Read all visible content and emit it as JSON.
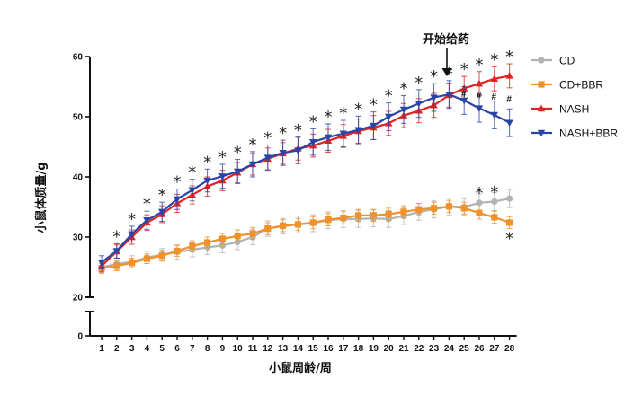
{
  "chart_data": {
    "type": "line",
    "xlabel": "小鼠周龄/周",
    "ylabel": "小鼠体质量/g",
    "x": [
      1,
      2,
      3,
      4,
      5,
      6,
      7,
      8,
      9,
      10,
      11,
      12,
      13,
      14,
      15,
      16,
      17,
      18,
      19,
      20,
      21,
      22,
      23,
      24,
      25,
      26,
      27,
      28
    ],
    "y_ticks": [
      0,
      20,
      30,
      40,
      50,
      60
    ],
    "ylim_upper": [
      20,
      60
    ],
    "ylim_lower": [
      0,
      0
    ],
    "axis_break": true,
    "grid": false,
    "legend_position": "right",
    "annotation": {
      "text": "开始给药",
      "x": 24
    },
    "series": [
      {
        "name": "CD",
        "color": "#b3b3b3",
        "marker": "circle",
        "values": [
          25.0,
          25.5,
          25.9,
          26.6,
          27.1,
          27.5,
          27.9,
          28.3,
          28.6,
          29.2,
          30.0,
          31.4,
          31.8,
          32.1,
          32.3,
          32.8,
          33.0,
          33.0,
          33.1,
          33.0,
          33.5,
          34.2,
          34.6,
          35.1,
          35.0,
          35.7,
          35.9,
          36.4
        ],
        "errors": [
          1.0,
          1.0,
          1.0,
          1.0,
          1.0,
          1.2,
          1.2,
          1.2,
          1.2,
          1.3,
          1.3,
          1.3,
          1.3,
          1.4,
          1.4,
          1.4,
          1.4,
          1.4,
          1.4,
          1.4,
          1.4,
          1.4,
          1.4,
          1.4,
          1.4,
          1.5,
          1.5,
          1.5
        ]
      },
      {
        "name": "CD+BBR",
        "color": "#f0922b",
        "marker": "square",
        "values": [
          24.8,
          25.2,
          25.7,
          26.4,
          26.9,
          27.7,
          28.5,
          29.1,
          29.7,
          30.2,
          30.6,
          31.4,
          31.9,
          32.1,
          32.4,
          32.9,
          33.2,
          33.6,
          33.6,
          33.8,
          34.2,
          34.6,
          34.8,
          35.1,
          34.8,
          34.0,
          33.3,
          32.4
        ],
        "errors": [
          0.8,
          0.8,
          0.8,
          0.8,
          0.9,
          0.9,
          0.9,
          0.9,
          0.9,
          1.0,
          1.0,
          1.0,
          1.0,
          1.0,
          1.0,
          1.0,
          1.0,
          1.0,
          1.0,
          1.0,
          1.0,
          1.0,
          1.0,
          1.0,
          1.0,
          1.0,
          1.0,
          1.0
        ]
      },
      {
        "name": "NASH",
        "color": "#e02323",
        "marker": "triangle-up",
        "values": [
          25.2,
          27.6,
          30.0,
          32.4,
          33.8,
          35.6,
          37.0,
          38.4,
          39.4,
          40.7,
          42.1,
          43.0,
          43.9,
          44.7,
          45.2,
          46.0,
          46.8,
          47.6,
          48.2,
          48.9,
          50.2,
          51.0,
          51.9,
          53.6,
          54.7,
          55.5,
          56.3,
          56.8
        ],
        "errors": [
          1.0,
          1.1,
          1.2,
          1.3,
          1.4,
          1.5,
          1.5,
          1.6,
          1.7,
          1.7,
          1.8,
          1.8,
          1.8,
          1.9,
          1.9,
          1.9,
          1.9,
          2.0,
          2.0,
          2.0,
          2.0,
          2.0,
          2.0,
          2.0,
          2.0,
          2.0,
          2.0,
          2.0
        ]
      },
      {
        "name": "NASH+BBR",
        "color": "#2a45a8",
        "marker": "triangle-down",
        "values": [
          25.8,
          27.7,
          30.5,
          32.8,
          34.2,
          36.3,
          37.8,
          39.4,
          40.1,
          40.9,
          42.1,
          43.2,
          44.0,
          44.4,
          45.8,
          46.6,
          47.2,
          47.8,
          48.5,
          50.0,
          51.2,
          52.2,
          53.2,
          53.7,
          52.7,
          51.4,
          50.3,
          49.0
        ],
        "errors": [
          1.1,
          1.2,
          1.3,
          1.5,
          1.6,
          1.7,
          1.8,
          1.9,
          2.0,
          2.0,
          2.1,
          2.1,
          2.1,
          2.2,
          2.2,
          2.2,
          2.2,
          2.3,
          2.3,
          2.3,
          2.3,
          2.3,
          2.3,
          2.3,
          2.3,
          2.3,
          2.3,
          2.3
        ]
      }
    ],
    "significance": {
      "nash_star_weeks": [
        2,
        3,
        4,
        5,
        6,
        7,
        8,
        9,
        10,
        11,
        12,
        13,
        14,
        15,
        16,
        17,
        18,
        19,
        20,
        21,
        22,
        23,
        24,
        25,
        26,
        27,
        28
      ],
      "nash_star_symbol": "*",
      "hash_weeks": [
        25,
        26,
        27,
        28
      ],
      "hash_symbol": "#",
      "cd_star_weeks": [
        26,
        27,
        28
      ],
      "cd_star_symbol": "*"
    }
  }
}
